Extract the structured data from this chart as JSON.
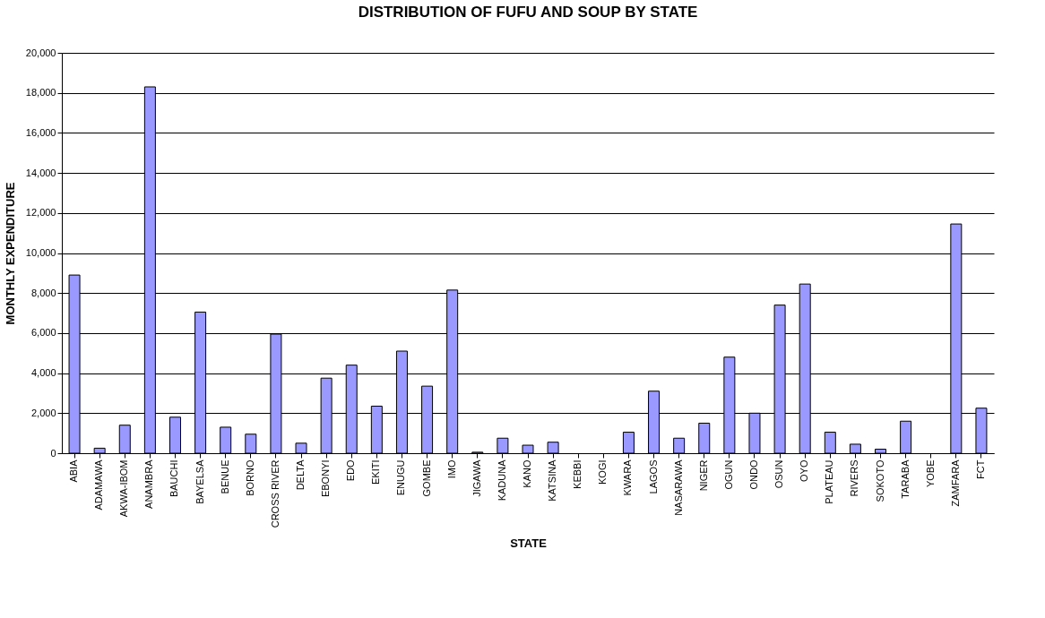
{
  "chart_data": {
    "type": "bar",
    "title": "DISTRIBUTION OF FUFU AND SOUP BY STATE",
    "xlabel": "STATE",
    "ylabel": "MONTHLY EXPENDITURE",
    "categories": [
      "ABIA",
      "ADAMAWA",
      "AKWA-IBOM",
      "ANAMBRA",
      "BAUCHI",
      "BAYELSA",
      "BENUE",
      "BORNO",
      "CROSS RIVER",
      "DELTA",
      "EBONYI",
      "EDO",
      "EKITI",
      "ENUGU",
      "GOMBE",
      "IMO",
      "JIGAWA",
      "KADUNA",
      "KANO",
      "KATSINA",
      "KEBBI",
      "KOGI",
      "KWARA",
      "LAGOS",
      "NASARAWA",
      "NIGER",
      "OGUN",
      "ONDO",
      "OSUN",
      "OYO",
      "PLATEAU",
      "RIVERS",
      "SOKOTO",
      "TARABA",
      "YOBE",
      "ZAMFARA",
      "FCT"
    ],
    "values": [
      8900,
      250,
      1400,
      18300,
      1800,
      7050,
      1300,
      950,
      5950,
      500,
      3750,
      4400,
      2350,
      5100,
      3350,
      8150,
      50,
      750,
      400,
      550,
      null,
      null,
      1050,
      3100,
      750,
      1500,
      4800,
      2000,
      7400,
      8450,
      1050,
      450,
      200,
      1600,
      null,
      11450,
      2250
    ],
    "color": "#9999ff",
    "ylim": [
      0,
      20000
    ],
    "yticks": [
      {
        "value": 0,
        "label": "0"
      },
      {
        "value": 2000,
        "label": "2,000"
      },
      {
        "value": 4000,
        "label": "4,000"
      },
      {
        "value": 6000,
        "label": "6,000"
      },
      {
        "value": 8000,
        "label": "8,000"
      },
      {
        "value": 10000,
        "label": "10,000"
      },
      {
        "value": 12000,
        "label": "12,000"
      },
      {
        "value": 14000,
        "label": "14,000"
      },
      {
        "value": 16000,
        "label": "16,000"
      },
      {
        "value": 18000,
        "label": "18,000"
      },
      {
        "value": 20000,
        "label": "20,000"
      }
    ],
    "grid": "y"
  }
}
